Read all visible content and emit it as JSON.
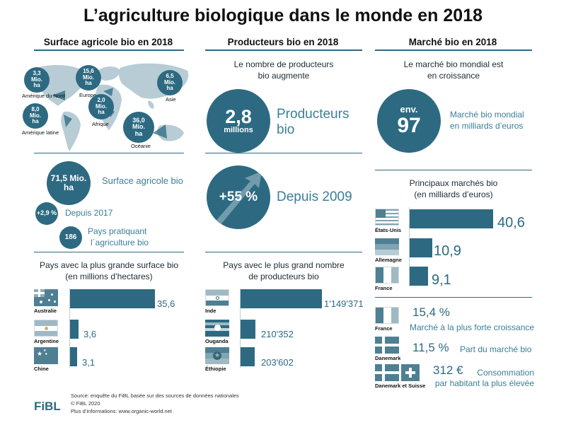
{
  "title": "L’agriculture biologique dans le monde en 2018",
  "columns": {
    "surface": "Surface agricole bio en 2018",
    "producers": "Producteurs bio en 2018",
    "market": "Marché bio en 2018"
  },
  "map_regions": [
    {
      "value": "3,3",
      "unit1": "Mio.",
      "unit2": "ha",
      "region": "Amérique du Nord"
    },
    {
      "value": "15,6",
      "unit1": "Mio.",
      "unit2": "ha",
      "region": "Europe"
    },
    {
      "value": "6,5",
      "unit1": "Mio.",
      "unit2": "ha",
      "region": "Asie"
    },
    {
      "value": "8,0",
      "unit1": "Mio.",
      "unit2": "ha",
      "region": "Amérique latine"
    },
    {
      "value": "2,0",
      "unit1": "Mio.",
      "unit2": "ha",
      "region": "Afrique"
    },
    {
      "value": "36,0",
      "unit1": "Mio.",
      "unit2": "ha",
      "region": "Océanie"
    }
  ],
  "surface_stats": {
    "area_value": "71,5 Mio.",
    "area_unit": "ha",
    "area_label": "Surface agricole bio",
    "growth_value": "+2,9 %",
    "growth_label": "Depuis 2017",
    "countries_value": "186",
    "countries_label1": "Pays pratiquant",
    "countries_label2": "l´agriculture bio"
  },
  "producer_stats": {
    "subtitle1": "Le nombre de producteurs",
    "subtitle2": "bio augmente",
    "count_value": "2,8",
    "count_unit": "millions",
    "count_label1": "Producteurs",
    "count_label2": "bio",
    "growth_value": "+55 %",
    "growth_label": "Depuis 2009"
  },
  "market_stats": {
    "subtitle1": "Le marché bio mondial est",
    "subtitle2": "en croissance",
    "env": "env.",
    "value": "97",
    "label1": "Marché bio mondial",
    "label2": "en milliards d’euros",
    "main_markets_title1": "Principaux marchés bio",
    "main_markets_title2": "(en milliards d’euros)"
  },
  "growth_facts": {
    "france_value": "15,4 %",
    "france_label": "Marché à la plus forte croissance",
    "france_country": "France",
    "denmark_value": "11,5 %",
    "denmark_label": "Part du marché bio",
    "denmark_country": "Danemark",
    "consumption_value": "312 €",
    "consumption_label1": "Consommation",
    "consumption_label2": "par habitant la plus élevée",
    "consumption_country": "Danemark et Suisse"
  },
  "footer": {
    "logo": "FiBL",
    "line1": "Source: enquête du FiBL basée sur des sources de données nationales",
    "line2": "© FiBL 2020",
    "line3": "Plus d’informations: www.organic-world.net"
  },
  "chart_data": [
    {
      "type": "bar",
      "orientation": "horizontal",
      "title": "Pays avec la plus grande surface bio (en millions d’hectares)",
      "title_line1": "Pays avec la plus grande surface bio",
      "title_line2": "(en millions d’hectares)",
      "categories": [
        "Australie",
        "Argentine",
        "Chine"
      ],
      "values": [
        35.6,
        3.6,
        3.1
      ],
      "labels": [
        "35,6",
        "3,6",
        "3,1"
      ]
    },
    {
      "type": "bar",
      "orientation": "horizontal",
      "title": "Pays avec le plus grand nombre de producteurs bio",
      "title_line1": "Pays avec le plus grand nombre",
      "title_line2": "de producteurs bio",
      "categories": [
        "Inde",
        "Ouganda",
        "Éthiopie"
      ],
      "values": [
        1149371,
        210352,
        203602
      ],
      "labels": [
        "1'149'371",
        "210'352",
        "203'602"
      ]
    },
    {
      "type": "bar",
      "orientation": "horizontal",
      "title": "Principaux marchés bio (en milliards d’euros)",
      "categories": [
        "États-Unis",
        "Allemagne",
        "France"
      ],
      "values": [
        40.6,
        10.9,
        9.1
      ],
      "labels": [
        "40,6",
        "10,9",
        "9,1"
      ]
    }
  ]
}
